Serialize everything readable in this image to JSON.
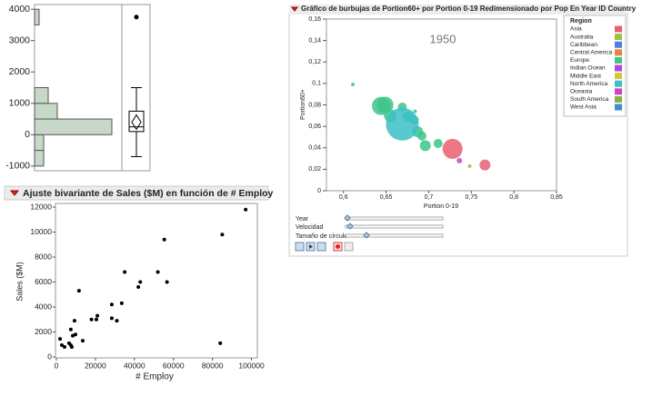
{
  "chart_data": [
    {
      "type": "histogram",
      "bins": [
        -1000,
        -500,
        0,
        500,
        1000,
        1500,
        2000,
        2500,
        3000,
        3500,
        4000
      ],
      "values": [
        2,
        2,
        17,
        5,
        3,
        0,
        0,
        0,
        0,
        1
      ],
      "color": "#c8d8c8",
      "ylim": [
        -1150,
        4150
      ],
      "yticks": [
        -1000,
        0,
        1000,
        2000,
        3000,
        4000
      ],
      "boxplot": {
        "min": -700,
        "q1": 100,
        "median": 250,
        "q3": 750,
        "max": 1500,
        "mean": 400,
        "outliers": [
          3750
        ]
      }
    },
    {
      "type": "scatter",
      "title": "Ajuste bivariante de Sales ($M) en función de # Employ",
      "x_label": "# Employ",
      "y_label": "Sales ($M)",
      "x": [
        97000,
        85000,
        84000,
        55300,
        56700,
        52000,
        43000,
        42000,
        35000,
        33500,
        31000,
        28400,
        28400,
        21000,
        18000,
        20500,
        11600,
        13500,
        9300,
        9800,
        7400,
        8400,
        7400,
        6500,
        7900,
        1900,
        2800,
        4200
      ],
      "values": [
        11800,
        9800,
        1100,
        9400,
        6000,
        6800,
        6000,
        5600,
        6800,
        4300,
        2900,
        4200,
        3100,
        3300,
        3000,
        3000,
        5300,
        1300,
        2900,
        1800,
        2200,
        1700,
        950,
        1100,
        800,
        1450,
        950,
        800
      ],
      "color": "#000000",
      "xlim": [
        0,
        103000
      ],
      "xticks": [
        0,
        20000,
        40000,
        60000,
        80000,
        100000
      ],
      "ylim": [
        0,
        12000
      ],
      "yticks": [
        0,
        2000,
        4000,
        6000,
        8000,
        10000,
        12000
      ]
    },
    {
      "type": "bubble",
      "title": "Gráfico de burbujas de Portion60+ por Portion 0-19 Redimensionado por Pop En Year ID Country",
      "x_label": "Portion 0-19",
      "y_label": "Portion60+",
      "annotation": "1950",
      "legend_title": "Region",
      "controls": [
        "Year",
        "Velocidad",
        "Tamaño de círculo"
      ],
      "xlim": [
        0.58,
        0.85
      ],
      "xticks": [
        {
          "value": 0.6,
          "label": "0,6"
        },
        {
          "value": 0.65,
          "label": "0,65"
        },
        {
          "value": 0.7,
          "label": "0,7"
        },
        {
          "value": 0.75,
          "label": "0,75"
        },
        {
          "value": 0.8,
          "label": "0,8"
        },
        {
          "value": 0.85,
          "label": "0,85"
        }
      ],
      "ylim": [
        0,
        0.16
      ],
      "yticks": [
        0,
        {
          "value": 0.02,
          "label": "0,02"
        },
        {
          "value": 0.04,
          "label": "0,04"
        },
        {
          "value": 0.06,
          "label": "0,06"
        },
        {
          "value": 0.08,
          "label": "0,08"
        },
        {
          "value": 0.1,
          "label": "0,1"
        },
        {
          "value": 0.12,
          "label": "0,12"
        },
        {
          "value": 0.14,
          "label": "0,14"
        },
        {
          "value": 0.16,
          "label": "0,16"
        }
      ],
      "series": [
        {
          "name": "Asia",
          "color": "#e8606e",
          "x": [
            0.728,
            0.766
          ],
          "values": [
            0.039,
            0.024
          ],
          "sizes": [
            121,
            36
          ]
        },
        {
          "name": "Australia",
          "color": "#9bc43c",
          "x": [
            0.748
          ],
          "values": [
            0.023
          ],
          "sizes": [
            4
          ]
        },
        {
          "name": "Caribbean",
          "color": "#4f7fe0",
          "x": [],
          "values": [],
          "sizes": []
        },
        {
          "name": "Central America",
          "color": "#e8843c",
          "x": [],
          "values": [],
          "sizes": []
        },
        {
          "name": "Europe",
          "color": "#3cc48a",
          "x": [
            0.644,
            0.649,
            0.655,
            0.669,
            0.676,
            0.683,
            0.687,
            0.692,
            0.696,
            0.711,
            0.684,
            0.611
          ],
          "values": [
            0.079,
            0.08,
            0.07,
            0.078,
            0.069,
            0.066,
            0.055,
            0.051,
            0.042,
            0.044,
            0.074,
            0.099
          ],
          "sizes": [
            100,
            81,
            49,
            25,
            36,
            25,
            36,
            25,
            36,
            25,
            4,
            4
          ]
        },
        {
          "name": "Indian Ocean",
          "color": "#b048e0",
          "x": [],
          "values": [],
          "sizes": []
        },
        {
          "name": "Middle East",
          "color": "#d6c83c",
          "x": [],
          "values": [],
          "sizes": []
        },
        {
          "name": "North America",
          "color": "#3cc0c8",
          "x": [
            0.669
          ],
          "values": [
            0.062
          ],
          "sizes": [
            324
          ]
        },
        {
          "name": "Oceania",
          "color": "#d040c8",
          "x": [
            0.736
          ],
          "values": [
            0.028
          ],
          "sizes": [
            9
          ]
        },
        {
          "name": "South America",
          "color": "#8ab040",
          "x": [],
          "values": [],
          "sizes": []
        },
        {
          "name": "West Asia",
          "color": "#3c8ed0",
          "x": [],
          "values": [],
          "sizes": []
        }
      ]
    }
  ]
}
